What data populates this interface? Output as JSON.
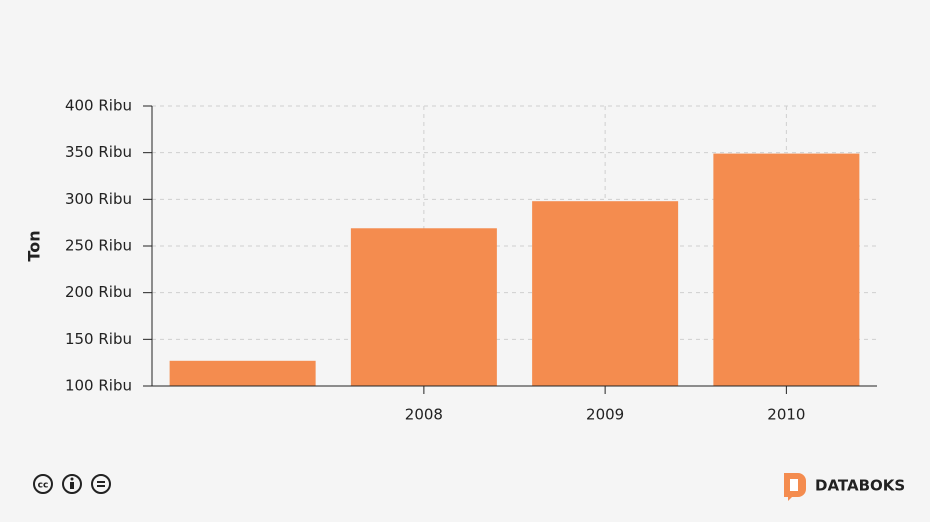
{
  "chart_data": {
    "type": "bar",
    "y_label": "Ton",
    "categories": [
      null,
      "2008",
      "2009",
      "2010"
    ],
    "values": [
      127000,
      269000,
      298000,
      349000
    ],
    "color": "#f48c4f",
    "ylim": [
      100000,
      400000
    ],
    "yticks": [
      {
        "value": 100000,
        "label": "100 Ribu"
      },
      {
        "value": 150000,
        "label": "150 Ribu"
      },
      {
        "value": 200000,
        "label": "200 Ribu"
      },
      {
        "value": 250000,
        "label": "250 Ribu"
      },
      {
        "value": 300000,
        "label": "300 Ribu"
      },
      {
        "value": 350000,
        "label": "350 Ribu"
      },
      {
        "value": 400000,
        "label": "400 Ribu"
      }
    ],
    "grid": true
  },
  "footer": {
    "brand": "DATABOKS"
  }
}
